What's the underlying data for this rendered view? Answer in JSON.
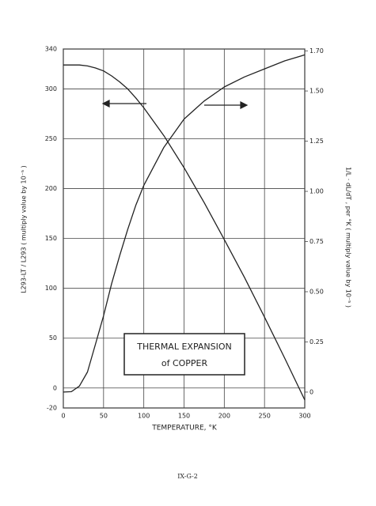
{
  "chart_data": {
    "type": "line",
    "title": "THERMAL EXPANSION",
    "subtitle": "of COPPER",
    "x_label": "TEMPERATURE, °K",
    "y_label": "L293-LT / L293   ( multiply value by 10⁻⁵ )",
    "y2_label": "1/L · dL/dT , per °K ( multiply value by 10⁻⁵ )",
    "page_label": "IX-G-2",
    "x": [
      0,
      10,
      20,
      30,
      40,
      50,
      60,
      70,
      80,
      90,
      100,
      125,
      150,
      175,
      200,
      225,
      250,
      275,
      300
    ],
    "series": [
      {
        "color": "#222222",
        "values": [
          324,
          324,
          324,
          323,
          321,
          318,
          313,
          307,
          300,
          291,
          281,
          253,
          221,
          186,
          149,
          111,
          71,
          30,
          -12
        ]
      },
      {
        "color": "#222222",
        "axis": "y2",
        "values": [
          0,
          0.002,
          0.03,
          0.1,
          0.24,
          0.38,
          0.54,
          0.68,
          0.81,
          0.93,
          1.03,
          1.22,
          1.36,
          1.45,
          1.52,
          1.57,
          1.61,
          1.65,
          1.68
        ]
      }
    ],
    "xlim": [
      0,
      300
    ],
    "xticks": [
      0,
      50,
      100,
      150,
      200,
      250,
      300
    ],
    "ylim": [
      -20,
      340
    ],
    "yticks": [
      -20,
      0,
      50,
      100,
      150,
      200,
      250,
      300,
      340
    ],
    "y2lim": [
      -0.079,
      1.709
    ],
    "y2ticks": [
      0,
      0.25,
      {
        "value": 0.5,
        "label": "0.50"
      },
      0.75,
      {
        "value": 1,
        "label": "1.00"
      },
      1.25,
      {
        "value": 1.5,
        "label": "1.50"
      },
      {
        "value": 1.7,
        "label": "1.70"
      }
    ],
    "grid": true
  }
}
